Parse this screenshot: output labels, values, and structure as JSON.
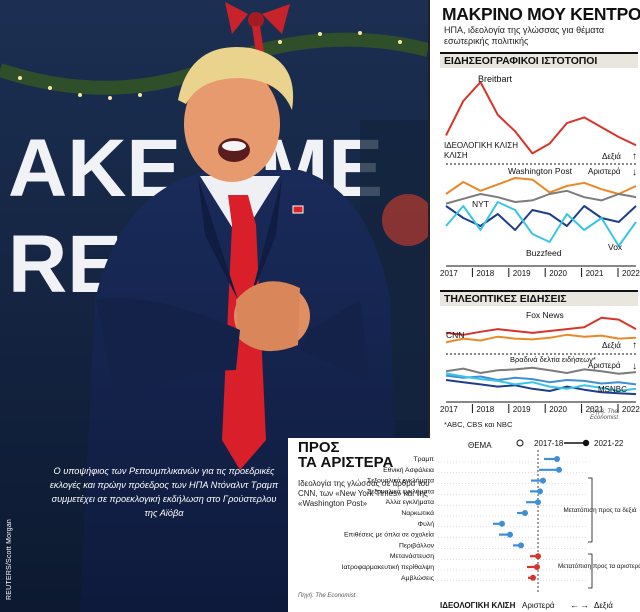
{
  "photo": {
    "caption": "Ο υποψήφιος των Ρεπουμπλικανών για τις προεδρικές εκλογές και πρώην πρόεδρος των ΗΠΑ Ντόναλντ Τραμπ συμμετέχει σε προεκλογική εκδήλωση στο Γρούστερλου της Αϊόβα",
    "credit": "REUTERS/Scott Morgan",
    "banner_fragments": [
      "AKE AME",
      "RE"
    ]
  },
  "header": {
    "title": "ΜΑΚΡΙΝΟ ΜΟΥ ΚΕΝΤΡΟ",
    "subtitle": "ΗΠΑ, ιδεολογία της γλώσσας για θέματα εσωτερικής πολιτικής"
  },
  "colors": {
    "red": "#d8342a",
    "orange": "#e9892a",
    "gray": "#7c7c7c",
    "darkblue": "#1e3e8c",
    "blue": "#3f8fd4",
    "cyan": "#38c6e6",
    "accent_bar": "#e8e6df"
  },
  "chart_data": [
    {
      "id": "news_sites",
      "type": "line",
      "section_title": "ΕΙΔΗΣΕΟΓΡΑΦΙΚΟΙ ΙΣΤΟΤΟΠΟΙ",
      "top_label": "ΙΔΕΟΛΟΓΙΚΗ ΚΛΙΣΗ",
      "top_label_line2": "ΚΛΙΣΗ",
      "right_label": "Δεξιά",
      "lower_right_label": "Αριστερά",
      "x": [
        "2017",
        "2017.5",
        "2018",
        "2018.5",
        "2019",
        "2019.5",
        "2020",
        "2020.5",
        "2021",
        "2021.5",
        "2022",
        "2022.5"
      ],
      "x_tick_labels": [
        "2017",
        "2018",
        "2019",
        "2020",
        "2021",
        "2022"
      ],
      "top_series": [
        {
          "name": "Breitbart",
          "color": "red",
          "values": [
            0.3,
            0.72,
            0.95,
            0.55,
            0.35,
            0.08,
            0.2,
            0.45,
            0.52,
            0.4,
            0.28,
            0.18
          ]
        }
      ],
      "series": [
        {
          "name": "Washington Post",
          "color": "orange",
          "values": [
            0.7,
            0.85,
            0.74,
            0.82,
            0.9,
            0.88,
            0.72,
            0.8,
            0.84,
            0.76,
            0.7,
            0.8
          ]
        },
        {
          "name": "NYT",
          "color": "gray",
          "values": [
            0.58,
            0.64,
            0.7,
            0.66,
            0.6,
            0.62,
            0.7,
            0.74,
            0.66,
            0.62,
            0.7,
            0.66
          ]
        },
        {
          "name": "Vox",
          "color": "darkblue",
          "values": [
            0.55,
            0.4,
            0.3,
            0.45,
            0.25,
            0.5,
            0.45,
            0.3,
            0.55,
            0.4,
            0.35,
            0.55
          ]
        },
        {
          "name": "Buzzfeed",
          "color": "cyan",
          "values": [
            0.3,
            0.55,
            0.25,
            0.6,
            0.5,
            0.2,
            0.1,
            0.45,
            0.25,
            0.4,
            0.05,
            0.35
          ]
        }
      ]
    },
    {
      "id": "tv_news",
      "type": "line",
      "section_title": "ΤΗΛΕΟΠΤΙΚΕΣ ΕΙΔΗΣΕΙΣ",
      "right_label": "Δεξιά",
      "lower_right_label": "Αριστερά",
      "x": [
        "2017",
        "2017.5",
        "2018",
        "2018.5",
        "2019",
        "2019.5",
        "2020",
        "2020.5",
        "2021",
        "2021.5",
        "2022",
        "2022.5"
      ],
      "x_tick_labels": [
        "2017",
        "2018",
        "2019",
        "2020",
        "2021",
        "2022"
      ],
      "top_series": [
        {
          "name": "Fox News",
          "color": "red",
          "values": [
            0.45,
            0.4,
            0.48,
            0.55,
            0.5,
            0.45,
            0.5,
            0.55,
            0.6,
            0.85,
            0.8,
            0.55
          ]
        },
        {
          "name": "CNN",
          "color": "orange",
          "values": [
            0.2,
            0.3,
            0.25,
            0.35,
            0.3,
            0.28,
            0.32,
            0.4,
            0.35,
            0.38,
            0.3,
            0.32
          ]
        }
      ],
      "series": [
        {
          "name": "Βραδινά δελτία ειδήσεων*",
          "color": "gray",
          "values": [
            0.7,
            0.76,
            0.66,
            0.72,
            0.74,
            0.78,
            0.72,
            0.66,
            0.74,
            0.7,
            0.64,
            0.68
          ]
        },
        {
          "name": "Βραδινά δελτία ειδήσεων* (b)",
          "color": "blue",
          "values": [
            0.6,
            0.55,
            0.58,
            0.5,
            0.55,
            0.52,
            0.45,
            0.5,
            0.48,
            0.42,
            0.45,
            0.4
          ]
        },
        {
          "name": "MSNBC",
          "color": "darkblue",
          "values": [
            0.5,
            0.45,
            0.4,
            0.35,
            0.38,
            0.3,
            0.25,
            0.35,
            0.28,
            0.22,
            0.2,
            0.18
          ]
        },
        {
          "name": "MSNBC cyan",
          "color": "cyan",
          "values": [
            0.65,
            0.58,
            0.52,
            0.48,
            0.4,
            0.45,
            0.35,
            0.3,
            0.38,
            0.32,
            0.25,
            0.3
          ]
        }
      ],
      "footnote": "*ABC, CBS και NBC",
      "source": "Πηγή: The Economist"
    },
    {
      "id": "topics_dot",
      "type": "scatter",
      "title_line1": "ΠΡΟΣ",
      "title_line2": "ΤΑ ΑΡΙΣΤΕΡΑ",
      "description": "Ιδεολογία της γλώσσας σε άρθρα του CNN, των «New York Times» και της «Washington Post»",
      "column_label": "ΘΕΜΑ",
      "legend": {
        "from": "2017-18",
        "to": "2021-22"
      },
      "x_label": "ΙΔΕΟΛΟΓΙΚΗ ΚΛΙΣΗ",
      "x_left": "Αριστερά",
      "x_right": "Δεξιά",
      "annotation_right": "Μετατόπιση προς τα δεξιά",
      "annotation_left": "Μετατόπιση προς τα αριστερά",
      "source": "Πηγή: The Economist",
      "xlim": [
        -1,
        1
      ],
      "rows": [
        {
          "topic": "Τραμπ",
          "from": 0.12,
          "to": 0.38,
          "color": "blue"
        },
        {
          "topic": "Εθνική Ασφάλεια",
          "from": 0.02,
          "to": 0.42,
          "color": "blue"
        },
        {
          "topic": "Σεξουαλικά εγκλήματα",
          "from": -0.14,
          "to": 0.1,
          "color": "blue"
        },
        {
          "topic": "Σεξουαλικά εγκλήματα",
          "from": -0.16,
          "to": 0.04,
          "color": "blue"
        },
        {
          "topic": "Άλλα εγκλήματα",
          "from": -0.24,
          "to": 0.0,
          "color": "blue"
        },
        {
          "topic": "Ναρκωτικά",
          "from": -0.42,
          "to": -0.26,
          "color": "blue"
        },
        {
          "topic": "Φυλή",
          "from": -0.9,
          "to": -0.72,
          "color": "blue"
        },
        {
          "topic": "Επιθέσεις με όπλα σε σχολεία",
          "from": -0.78,
          "to": -0.56,
          "color": "blue"
        },
        {
          "topic": "Περιβάλλον",
          "from": -0.5,
          "to": -0.34,
          "color": "blue"
        },
        {
          "topic": "Μετανάστευση",
          "from": -0.16,
          "to": 0.0,
          "color": "red"
        },
        {
          "topic": "Ιατροφαρμακευτική περίθαλψη",
          "from": -0.22,
          "to": -0.02,
          "color": "red"
        },
        {
          "topic": "Αμβλώσεις",
          "from": -0.2,
          "to": -0.1,
          "color": "red"
        }
      ]
    }
  ]
}
